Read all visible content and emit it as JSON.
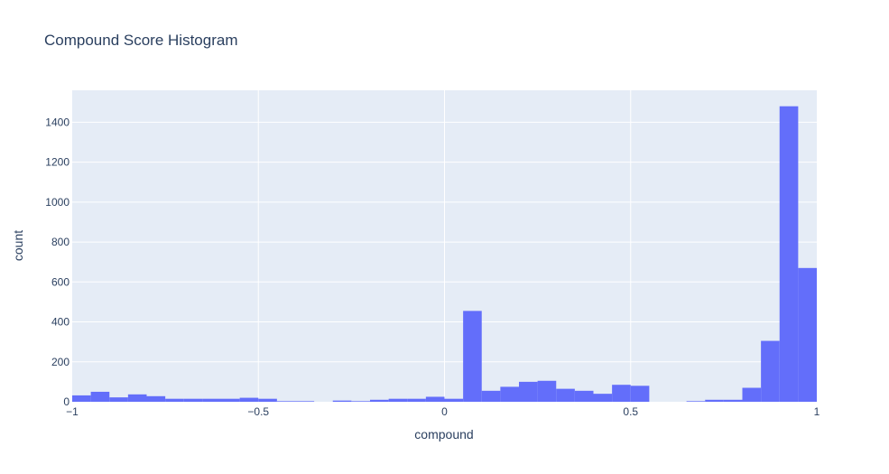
{
  "chart_data": {
    "type": "bar",
    "title": "Compound Score Histogram",
    "xlabel": "compound",
    "ylabel": "count",
    "xlim": [
      -1,
      1
    ],
    "ylim": [
      0,
      1560
    ],
    "bin_width": 0.05,
    "x_ticks": [
      -1,
      -0.5,
      0,
      0.5,
      1
    ],
    "x_tick_labels": [
      "−1",
      "−0.5",
      "0",
      "0.5",
      "1"
    ],
    "y_ticks": [
      0,
      200,
      400,
      600,
      800,
      1000,
      1200,
      1400
    ],
    "y_tick_labels": [
      "0",
      "200",
      "400",
      "600",
      "800",
      "1000",
      "1200",
      "1400"
    ],
    "grid": true,
    "bar_color": "#636efa",
    "plot_bg": "#e5ecf6",
    "series": [
      {
        "bins": [
          {
            "x0": -1.0,
            "x1": -0.95,
            "count": 32
          },
          {
            "x0": -0.95,
            "x1": -0.9,
            "count": 50
          },
          {
            "x0": -0.9,
            "x1": -0.85,
            "count": 22
          },
          {
            "x0": -0.85,
            "x1": -0.8,
            "count": 37
          },
          {
            "x0": -0.8,
            "x1": -0.75,
            "count": 28
          },
          {
            "x0": -0.75,
            "x1": -0.7,
            "count": 15
          },
          {
            "x0": -0.7,
            "x1": -0.65,
            "count": 15
          },
          {
            "x0": -0.65,
            "x1": -0.6,
            "count": 15
          },
          {
            "x0": -0.6,
            "x1": -0.55,
            "count": 15
          },
          {
            "x0": -0.55,
            "x1": -0.5,
            "count": 20
          },
          {
            "x0": -0.5,
            "x1": -0.45,
            "count": 15
          },
          {
            "x0": -0.45,
            "x1": -0.4,
            "count": 3
          },
          {
            "x0": -0.4,
            "x1": -0.35,
            "count": 3
          },
          {
            "x0": -0.35,
            "x1": -0.3,
            "count": 0
          },
          {
            "x0": -0.3,
            "x1": -0.25,
            "count": 6
          },
          {
            "x0": -0.25,
            "x1": -0.2,
            "count": 3
          },
          {
            "x0": -0.2,
            "x1": -0.15,
            "count": 10
          },
          {
            "x0": -0.15,
            "x1": -0.1,
            "count": 15
          },
          {
            "x0": -0.1,
            "x1": -0.05,
            "count": 15
          },
          {
            "x0": -0.05,
            "x1": 0.0,
            "count": 25
          },
          {
            "x0": 0.0,
            "x1": 0.05,
            "count": 15
          },
          {
            "x0": 0.05,
            "x1": 0.1,
            "count": 455
          },
          {
            "x0": 0.1,
            "x1": 0.15,
            "count": 55
          },
          {
            "x0": 0.15,
            "x1": 0.2,
            "count": 75
          },
          {
            "x0": 0.2,
            "x1": 0.25,
            "count": 100
          },
          {
            "x0": 0.25,
            "x1": 0.3,
            "count": 105
          },
          {
            "x0": 0.3,
            "x1": 0.35,
            "count": 65
          },
          {
            "x0": 0.35,
            "x1": 0.4,
            "count": 55
          },
          {
            "x0": 0.4,
            "x1": 0.45,
            "count": 40
          },
          {
            "x0": 0.45,
            "x1": 0.5,
            "count": 85
          },
          {
            "x0": 0.5,
            "x1": 0.55,
            "count": 80
          },
          {
            "x0": 0.55,
            "x1": 0.6,
            "count": 0
          },
          {
            "x0": 0.6,
            "x1": 0.65,
            "count": 0
          },
          {
            "x0": 0.65,
            "x1": 0.7,
            "count": 3
          },
          {
            "x0": 0.7,
            "x1": 0.75,
            "count": 10
          },
          {
            "x0": 0.75,
            "x1": 0.8,
            "count": 10
          },
          {
            "x0": 0.8,
            "x1": 0.85,
            "count": 70
          },
          {
            "x0": 0.85,
            "x1": 0.9,
            "count": 305
          },
          {
            "x0": 0.9,
            "x1": 0.95,
            "count": 1480
          },
          {
            "x0": 0.95,
            "x1": 1.0,
            "count": 670
          }
        ]
      }
    ]
  }
}
